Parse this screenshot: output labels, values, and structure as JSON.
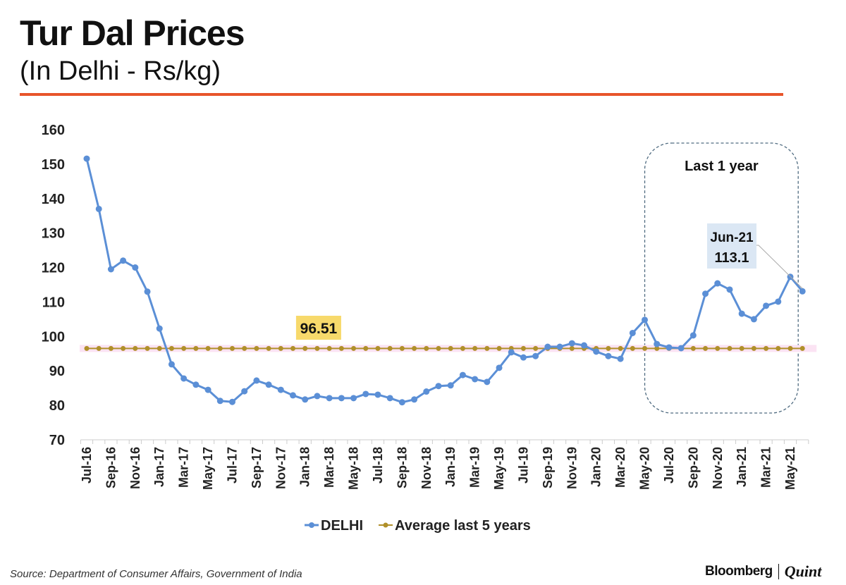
{
  "header": {
    "title": "Tur Dal Prices",
    "subtitle": "(In Delhi - Rs/kg)"
  },
  "footer": {
    "source": "Source: Department of Consumer Affairs, Government of India",
    "brand_left": "Bloomberg",
    "brand_right": "Quint"
  },
  "chart_data": {
    "type": "line",
    "title": "",
    "xlabel": "",
    "ylabel": "",
    "ylim": [
      70,
      160
    ],
    "yticks": [
      70,
      80,
      90,
      100,
      110,
      120,
      130,
      140,
      150,
      160
    ],
    "grid": false,
    "legend_placement": "bottom",
    "x": [
      "Jul-16",
      "Aug-16",
      "Sep-16",
      "Oct-16",
      "Nov-16",
      "Dec-16",
      "Jan-17",
      "Feb-17",
      "Mar-17",
      "Apr-17",
      "May-17",
      "Jun-17",
      "Jul-17",
      "Aug-17",
      "Sep-17",
      "Oct-17",
      "Nov-17",
      "Dec-17",
      "Jan-18",
      "Feb-18",
      "Mar-18",
      "Apr-18",
      "May-18",
      "Jun-18",
      "Jul-18",
      "Aug-18",
      "Sep-18",
      "Oct-18",
      "Nov-18",
      "Dec-18",
      "Jan-19",
      "Feb-19",
      "Mar-19",
      "Apr-19",
      "May-19",
      "Jun-19",
      "Jul-19",
      "Aug-19",
      "Sep-19",
      "Oct-19",
      "Nov-19",
      "Dec-19",
      "Jan-20",
      "Feb-20",
      "Mar-20",
      "Apr-20",
      "May-20",
      "Jun-20",
      "Jul-20",
      "Aug-20",
      "Sep-20",
      "Oct-20",
      "Nov-20",
      "Dec-20",
      "Jan-21",
      "Feb-21",
      "Mar-21",
      "Apr-21",
      "May-21",
      "Jun-21"
    ],
    "tick_labels": [
      "Jul-16",
      "Sep-16",
      "Nov-16",
      "Jan-17",
      "Mar-17",
      "May-17",
      "Jul-17",
      "Sep-17",
      "Nov-17",
      "Jan-18",
      "Mar-18",
      "May-18",
      "Jul-18",
      "Sep-18",
      "Nov-18",
      "Jan-19",
      "Mar-19",
      "May-19",
      "Jul-19",
      "Sep-19",
      "Nov-19",
      "Jan-20",
      "Mar-20",
      "May-20",
      "Jul-20",
      "Sep-20",
      "Nov-20",
      "Jan-21",
      "Mar-21",
      "May-21"
    ],
    "series": [
      {
        "name": "DELHI",
        "color": "#5b8fd6",
        "values": [
          151.6,
          137,
          119.5,
          122,
          120,
          113,
          102.3,
          91.9,
          87.8,
          86,
          84.5,
          81.3,
          81,
          84.1,
          87.2,
          86,
          84.5,
          82.9,
          81.7,
          82.7,
          82.1,
          82.1,
          82.1,
          83.3,
          83.1,
          82.1,
          80.9,
          81.7,
          84,
          85.6,
          85.8,
          88.8,
          87.6,
          86.8,
          90.9,
          95.4,
          93.9,
          94.3,
          97,
          97,
          98,
          97.4,
          95.6,
          94.3,
          93.5,
          101,
          104.8,
          97.8,
          96.8,
          96.6,
          100.3,
          112.4,
          115.4,
          113.6,
          106.6,
          105,
          108.9,
          110.1,
          117.3,
          113.1
        ]
      },
      {
        "name": "Average last 5 years",
        "color": "#b0902a",
        "constant": 96.51
      }
    ],
    "annotations": [
      {
        "text": "96.51",
        "color": "#f7d96b"
      },
      {
        "text_line1": "Jun-21",
        "text_line2": "113.1",
        "color": "#dbe7f4"
      },
      {
        "text": "Last 1 year",
        "from": "May-20",
        "to": "Jun-21"
      }
    ]
  }
}
